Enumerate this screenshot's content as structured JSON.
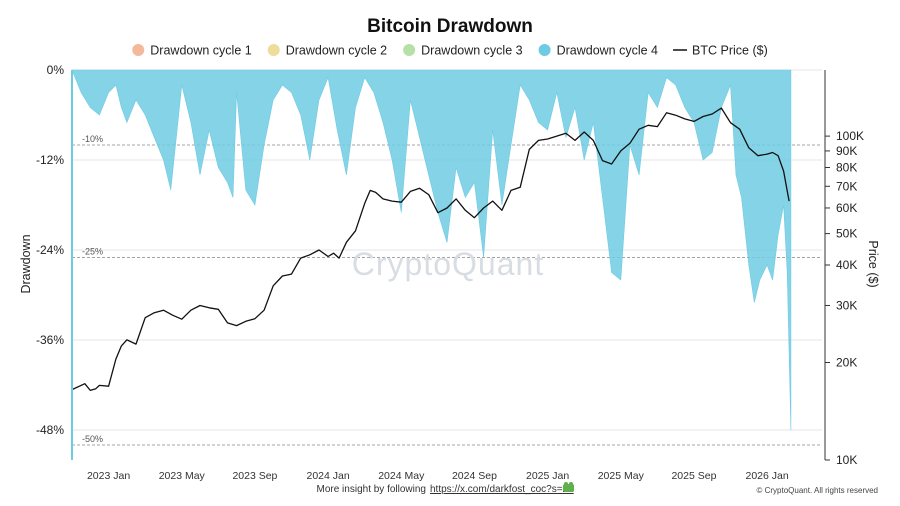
{
  "colors": {
    "cycle1": "#f4b99b",
    "cycle2": "#f0dc9a",
    "cycle3": "#b6e0a6",
    "cycle4": "#6fcbe3",
    "btc": "#111111",
    "grid": "#e6e6e6",
    "ref": "#888888"
  },
  "chart_data": {
    "type": "area",
    "title": "Bitcoin Drawdown",
    "legend": [
      {
        "label": "Drawdown cycle 1",
        "kind": "dot",
        "color": "#f4b99b"
      },
      {
        "label": "Drawdown cycle 2",
        "kind": "dot",
        "color": "#f0dc9a"
      },
      {
        "label": "Drawdown cycle 3",
        "kind": "dot",
        "color": "#b6e0a6"
      },
      {
        "label": "Drawdown cycle 4",
        "kind": "dot",
        "color": "#6fcbe3"
      },
      {
        "label": "BTC Price ($)",
        "kind": "line",
        "color": "#111111"
      }
    ],
    "ylabel_left": "Drawdown",
    "ylabel_right": "Price ($)",
    "left_ylim": [
      -50,
      0
    ],
    "left_ticks": [
      {
        "value": 0,
        "label": "0%"
      },
      {
        "value": -12,
        "label": "-12%"
      },
      {
        "value": -24,
        "label": "-24%"
      },
      {
        "value": -36,
        "label": "-36%"
      },
      {
        "value": -48,
        "label": "-48%"
      }
    ],
    "reference_lines": [
      {
        "value": -10,
        "label": "-10%"
      },
      {
        "value": -25,
        "label": "-25%"
      },
      {
        "value": -50,
        "label": "-50%"
      }
    ],
    "right_scale": "log",
    "right_ylim": [
      10000,
      160000
    ],
    "right_ticks": [
      {
        "value": 100000,
        "label": "100K"
      },
      {
        "value": 90000,
        "label": "90K"
      },
      {
        "value": 80000,
        "label": "80K"
      },
      {
        "value": 70000,
        "label": "70K"
      },
      {
        "value": 60000,
        "label": "60K"
      },
      {
        "value": 50000,
        "label": "50K"
      },
      {
        "value": 40000,
        "label": "40K"
      },
      {
        "value": 30000,
        "label": "30K"
      },
      {
        "value": 20000,
        "label": "20K"
      },
      {
        "value": 10000,
        "label": "10K"
      }
    ],
    "xlim": [
      0,
      41
    ],
    "x_ticks": [
      {
        "value": 2,
        "label": "2023 Jan"
      },
      {
        "value": 6,
        "label": "2023 May"
      },
      {
        "value": 10,
        "label": "2023 Sep"
      },
      {
        "value": 14,
        "label": "2024 Jan"
      },
      {
        "value": 18,
        "label": "2024 May"
      },
      {
        "value": 22,
        "label": "2024 Sep"
      },
      {
        "value": 26,
        "label": "2025 Jan"
      },
      {
        "value": 30,
        "label": "2025 May"
      },
      {
        "value": 34,
        "label": "2025 Sep"
      },
      {
        "value": 38,
        "label": "2026 Jan"
      }
    ],
    "series": [
      {
        "name": "BTC Price ($)",
        "type": "line",
        "x": [
          0,
          0.7,
          1,
          1.3,
          1.5,
          2,
          2.4,
          2.7,
          3,
          3.5,
          4,
          4.5,
          5,
          5.5,
          6,
          6.5,
          7,
          7.5,
          8,
          8.5,
          9,
          9.5,
          10,
          10.5,
          11,
          11.5,
          12,
          12.5,
          13,
          13.5,
          14,
          14.3,
          14.6,
          15,
          15.5,
          16,
          16.3,
          16.6,
          17,
          17.5,
          18,
          18.5,
          19,
          19.5,
          20,
          20.5,
          21,
          21.5,
          22,
          22.5,
          23,
          23.5,
          24,
          24.5,
          25,
          25.5,
          26,
          26.5,
          27,
          27.5,
          28,
          28.5,
          29,
          29.5,
          30,
          30.5,
          31,
          31.5,
          32,
          32.5,
          33,
          33.5,
          34,
          34.5,
          35,
          35.5,
          36,
          36.5,
          37,
          37.5,
          38,
          38.3,
          38.6,
          38.9,
          39.2
        ],
        "values": [
          16500,
          17200,
          16400,
          16600,
          17000,
          16900,
          20500,
          22500,
          23500,
          22800,
          27500,
          28500,
          29000,
          28000,
          27200,
          29000,
          30000,
          29500,
          29200,
          26500,
          26000,
          26800,
          27300,
          29000,
          34500,
          37000,
          37500,
          42000,
          43000,
          44500,
          42500,
          43500,
          42000,
          47000,
          51000,
          62000,
          68000,
          67000,
          64000,
          63000,
          62500,
          67500,
          69000,
          66000,
          58000,
          60000,
          64000,
          59000,
          56000,
          60000,
          63000,
          59000,
          68000,
          69500,
          91000,
          97000,
          98000,
          100000,
          102000,
          97000,
          103000,
          97000,
          84000,
          82000,
          90000,
          95000,
          105000,
          108000,
          107000,
          118000,
          116000,
          113000,
          111000,
          115000,
          117000,
          122000,
          110000,
          105000,
          92000,
          87000,
          88000,
          89000,
          87000,
          78000,
          63000
        ]
      },
      {
        "name": "Drawdown cycle 4",
        "type": "area",
        "x": [
          0,
          0.5,
          1,
          1.5,
          2,
          2.4,
          2.7,
          3,
          3.5,
          4,
          4.5,
          5,
          5.4,
          6,
          6.5,
          7,
          7.5,
          8,
          8.5,
          8.8,
          9,
          9.5,
          10,
          10.5,
          11,
          11.5,
          12,
          12.5,
          13,
          13.5,
          14,
          14.5,
          15,
          15.5,
          16,
          16.5,
          17,
          17.5,
          18,
          18.5,
          19,
          19.5,
          20,
          20.5,
          21,
          21.5,
          22,
          22.5,
          23,
          23.5,
          24,
          24.5,
          25,
          25.5,
          26,
          26.5,
          27,
          27.5,
          28,
          28.5,
          29,
          29.5,
          30,
          30.5,
          31,
          31.5,
          32,
          32.5,
          33,
          33.5,
          34,
          34.5,
          35,
          35.5,
          36,
          36.3,
          36.6,
          37,
          37.3,
          37.6,
          38,
          38.3,
          38.6,
          38.9,
          39.1,
          39.3
        ],
        "values": [
          0,
          -3,
          -5,
          -6,
          -3,
          -2,
          -5,
          -7,
          -4,
          -6,
          -9,
          -12,
          -16,
          -2,
          -7,
          -14,
          -8,
          -13,
          -15,
          -17,
          -3,
          -16,
          -18,
          -10,
          -4,
          -2,
          -3,
          -6,
          -12,
          -4,
          -1,
          -8,
          -14,
          -5,
          -1,
          -3,
          -7,
          -12,
          -19,
          -4,
          -9,
          -14,
          -19,
          -23,
          -13,
          -17,
          -15,
          -25,
          -8,
          -18,
          -10,
          -2,
          -4,
          -7,
          -8,
          -3,
          -9,
          -5,
          -12,
          -7,
          -17,
          -27,
          -28,
          -10,
          -14,
          -3,
          -5,
          -1,
          -2,
          -5,
          -7,
          -12,
          -11,
          -5,
          -2,
          -14,
          -17,
          -26,
          -31,
          -28,
          -26,
          -28,
          -22,
          -18,
          -27,
          -48
        ]
      }
    ],
    "watermark": "CryptoQuant",
    "footer_text": "More insight by following",
    "footer_link": "https://x.com/darkfost_coc?s=21",
    "copyright": "© CryptoQuant. All rights reserved"
  }
}
